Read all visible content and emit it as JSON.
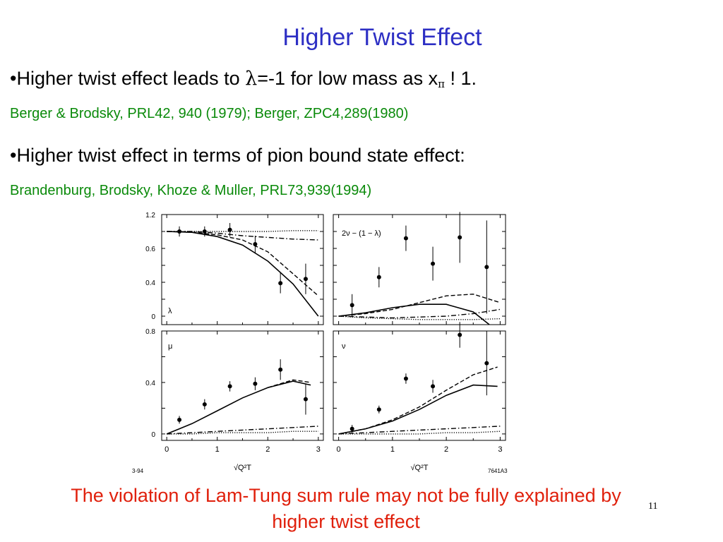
{
  "slide": {
    "title": "Higher Twist Effect",
    "bullet1": {
      "marker": "•",
      "text_a": "Higher  twist effect leads to ",
      "lambda": "λ",
      "text_b": "=-1 for low mass as x",
      "sub": "π",
      "text_c": " ! 1."
    },
    "ref1": "Berger & Brodsky, PRL42, 940 (1979); Berger, ZPC4,289(1980)",
    "bullet2": {
      "marker": "•",
      "text": "Higher twist effect in terms of pion bound state effect:"
    },
    "ref2": "Brandenburg, Brodsky, Khoze & Muller, PRL73,939(1994)",
    "conclusion": "The violation of Lam-Tung sum rule may not be fully explained by higher twist effect",
    "page_number": "11",
    "colors": {
      "title": "#2d2fc4",
      "reference": "#0a8a0a",
      "conclusion": "#e0200c"
    }
  },
  "figure": {
    "xlabel": "√Q²T",
    "x_ticks": [
      "0",
      "1",
      "2",
      "3"
    ],
    "y_ticks_top": [
      "1.2",
      "0.6",
      "0.4",
      "0"
    ],
    "y_ticks_bottom": [
      "0.8",
      "0.4",
      "0"
    ],
    "corner_left": "3-94",
    "corner_right": "7641A3",
    "panel_labels": {
      "lambda": "λ",
      "sumrule": "2ν − (1 − λ)",
      "mu": "μ",
      "nu": "ν"
    }
  },
  "chart_data": [
    {
      "type": "scatter",
      "panel": "lambda",
      "xlabel": "√Q²T",
      "ylabel": "",
      "xlim": [
        0,
        3
      ],
      "ylim": [
        -0.1,
        1.2
      ],
      "points": [
        {
          "x": 0.25,
          "y": 1.0,
          "err": 0.06
        },
        {
          "x": 0.75,
          "y": 1.0,
          "err": 0.06
        },
        {
          "x": 1.25,
          "y": 1.02,
          "err": 0.08
        },
        {
          "x": 1.75,
          "y": 0.85,
          "err": 0.1
        },
        {
          "x": 2.25,
          "y": 0.39,
          "err": 0.12
        },
        {
          "x": 2.75,
          "y": 0.44,
          "err": 0.18
        }
      ],
      "series": [
        {
          "style": "solid",
          "x": [
            0,
            0.5,
            1,
            1.5,
            2,
            2.5,
            3
          ],
          "y": [
            1.0,
            0.99,
            0.94,
            0.84,
            0.65,
            0.38,
            0.0
          ]
        },
        {
          "style": "dashed",
          "x": [
            0,
            0.5,
            1,
            1.5,
            2,
            2.5,
            3
          ],
          "y": [
            1.0,
            0.99,
            0.96,
            0.9,
            0.76,
            0.5,
            0.24
          ]
        },
        {
          "style": "dashdot",
          "x": [
            0,
            0.5,
            1,
            1.5,
            2,
            2.5,
            3
          ],
          "y": [
            1.0,
            1.0,
            0.98,
            0.95,
            0.93,
            0.91,
            0.9
          ]
        },
        {
          "style": "dotted",
          "x": [
            0,
            0.5,
            1,
            1.5,
            2,
            2.5,
            3
          ],
          "y": [
            1.0,
            1.0,
            1.0,
            1.0,
            1.0,
            1.01,
            1.01
          ]
        }
      ]
    },
    {
      "type": "scatter",
      "panel": "sumrule",
      "xlabel": "√Q²T",
      "ylabel": "",
      "xlim": [
        0,
        3
      ],
      "ylim": [
        -0.1,
        1.2
      ],
      "points": [
        {
          "x": 0.25,
          "y": 0.13,
          "err": 0.13
        },
        {
          "x": 0.75,
          "y": 0.46,
          "err": 0.12
        },
        {
          "x": 1.25,
          "y": 0.92,
          "err": 0.15
        },
        {
          "x": 1.75,
          "y": 0.62,
          "err": 0.2
        },
        {
          "x": 2.25,
          "y": 0.93,
          "err": 0.3
        },
        {
          "x": 2.75,
          "y": 0.58,
          "err": 0.55
        }
      ],
      "series": [
        {
          "style": "solid",
          "x": [
            0,
            0.5,
            1,
            1.5,
            2,
            2.5,
            2.8
          ],
          "y": [
            0.0,
            0.04,
            0.1,
            0.14,
            0.14,
            0.05,
            -0.1
          ]
        },
        {
          "style": "dashed",
          "x": [
            0,
            0.5,
            1,
            1.5,
            2,
            2.5,
            3
          ],
          "y": [
            0.0,
            0.03,
            0.08,
            0.16,
            0.24,
            0.26,
            0.16
          ]
        },
        {
          "style": "dashdot",
          "x": [
            0,
            0.5,
            1,
            1.5,
            2,
            2.5,
            3
          ],
          "y": [
            0.0,
            -0.01,
            -0.02,
            -0.01,
            0.0,
            0.03,
            0.08
          ]
        },
        {
          "style": "dotted",
          "x": [
            0,
            0.5,
            1,
            1.5,
            2,
            2.5,
            3
          ],
          "y": [
            0.0,
            -0.02,
            -0.03,
            -0.04,
            -0.04,
            -0.04,
            -0.03
          ]
        }
      ]
    },
    {
      "type": "scatter",
      "panel": "mu",
      "xlabel": "√Q²T",
      "ylabel": "",
      "xlim": [
        0,
        3
      ],
      "ylim": [
        -0.05,
        0.8
      ],
      "points": [
        {
          "x": 0.25,
          "y": 0.11,
          "err": 0.03
        },
        {
          "x": 0.75,
          "y": 0.23,
          "err": 0.04
        },
        {
          "x": 1.25,
          "y": 0.37,
          "err": 0.04
        },
        {
          "x": 1.75,
          "y": 0.39,
          "err": 0.05
        },
        {
          "x": 2.25,
          "y": 0.5,
          "err": 0.08
        },
        {
          "x": 2.75,
          "y": 0.27,
          "err": 0.12
        }
      ],
      "series": [
        {
          "style": "solid",
          "x": [
            0,
            0.5,
            1,
            1.5,
            2,
            2.5,
            2.85
          ],
          "y": [
            0.0,
            0.08,
            0.18,
            0.28,
            0.36,
            0.41,
            0.38
          ]
        },
        {
          "style": "dashed",
          "x": [
            2,
            2.5,
            2.85
          ],
          "y": [
            0.36,
            0.42,
            0.4
          ]
        },
        {
          "style": "dashdot",
          "x": [
            0,
            0.5,
            1,
            1.5,
            2,
            2.5,
            3
          ],
          "y": [
            0.0,
            0.01,
            0.02,
            0.03,
            0.04,
            0.05,
            0.06
          ]
        },
        {
          "style": "dotted",
          "x": [
            0,
            0.5,
            1,
            1.5,
            2,
            2.5,
            3
          ],
          "y": [
            0.0,
            0.0,
            0.01,
            0.01,
            0.01,
            0.02,
            0.02
          ]
        }
      ]
    },
    {
      "type": "scatter",
      "panel": "nu",
      "xlabel": "√Q²T",
      "ylabel": "",
      "xlim": [
        0,
        3
      ],
      "ylim": [
        -0.05,
        0.8
      ],
      "points": [
        {
          "x": 0.25,
          "y": 0.04,
          "err": 0.03
        },
        {
          "x": 0.75,
          "y": 0.19,
          "err": 0.03
        },
        {
          "x": 1.25,
          "y": 0.43,
          "err": 0.04
        },
        {
          "x": 1.75,
          "y": 0.37,
          "err": 0.05
        },
        {
          "x": 2.25,
          "y": 0.77,
          "err": 0.1
        },
        {
          "x": 2.75,
          "y": 0.55,
          "err": 0.25
        }
      ],
      "series": [
        {
          "style": "solid",
          "x": [
            0,
            0.5,
            1,
            1.5,
            2,
            2.5,
            2.95
          ],
          "y": [
            0.0,
            0.04,
            0.1,
            0.19,
            0.3,
            0.38,
            0.37
          ]
        },
        {
          "style": "dashed",
          "x": [
            0,
            0.5,
            1,
            1.5,
            2,
            2.5,
            2.95
          ],
          "y": [
            0.0,
            0.04,
            0.11,
            0.21,
            0.34,
            0.46,
            0.52
          ]
        },
        {
          "style": "dashdot",
          "x": [
            0,
            0.5,
            1,
            1.5,
            2,
            2.5,
            3
          ],
          "y": [
            0.0,
            0.01,
            0.02,
            0.03,
            0.04,
            0.05,
            0.06
          ]
        },
        {
          "style": "dotted",
          "x": [
            0,
            0.5,
            1,
            1.5,
            2,
            2.5,
            3
          ],
          "y": [
            0.0,
            0.0,
            0.0,
            0.0,
            0.01,
            0.01,
            0.02
          ]
        }
      ]
    }
  ]
}
